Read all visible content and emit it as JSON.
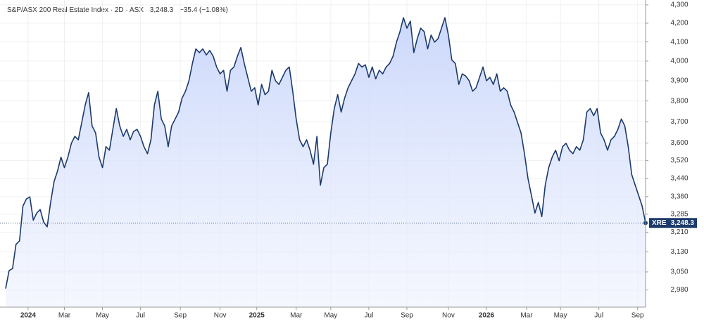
{
  "chart_data": {
    "type": "area",
    "title": "S&P/ASX 200 Real Estate Index · 2D · ASX",
    "last_price": "3,248.3",
    "change": "−35.4 (−1.08%)",
    "log_scale": true,
    "grid": true,
    "series": [
      {
        "name": "XRE",
        "color": "#1c3a6b",
        "values": [
          2985,
          3055,
          3063,
          3160,
          3174,
          3320,
          3350,
          3359,
          3260,
          3290,
          3305,
          3252,
          3232,
          3335,
          3426,
          3472,
          3535,
          3488,
          3535,
          3599,
          3631,
          3615,
          3696,
          3780,
          3841,
          3680,
          3647,
          3535,
          3488,
          3583,
          3567,
          3664,
          3763,
          3680,
          3631,
          3664,
          3615,
          3654,
          3664,
          3631,
          3583,
          3551,
          3615,
          3780,
          3848,
          3713,
          3680,
          3583,
          3680,
          3713,
          3746,
          3814,
          3848,
          3900,
          3988,
          4063,
          4044,
          4063,
          4032,
          4055,
          4025,
          3970,
          3935,
          3953,
          3848,
          3953,
          3970,
          4025,
          4070,
          3988,
          3917,
          3848,
          3865,
          3780,
          3882,
          3831,
          3848,
          3953,
          3900,
          3882,
          3917,
          3953,
          3970,
          3848,
          3713,
          3615,
          3583,
          3615,
          3567,
          3503,
          3631,
          3410,
          3488,
          3503,
          3647,
          3763,
          3831,
          3746,
          3814,
          3865,
          3900,
          3935,
          3988,
          3970,
          3981,
          3917,
          3970,
          3910,
          3953,
          3935,
          3970,
          3988,
          4025,
          4099,
          4154,
          4230,
          4173,
          4211,
          4044,
          4117,
          4173,
          4154,
          4063,
          4136,
          4099,
          4117,
          4173,
          4230,
          4136,
          4006,
          3988,
          3882,
          3935,
          3924,
          3900,
          3848,
          3865,
          3917,
          3970,
          3900,
          3917,
          3882,
          3935,
          3848,
          3865,
          3848,
          3780,
          3746,
          3696,
          3647,
          3551,
          3441,
          3365,
          3290,
          3335,
          3275,
          3410,
          3488,
          3535,
          3567,
          3519,
          3583,
          3599,
          3567,
          3551,
          3583,
          3567,
          3615,
          3746,
          3763,
          3729,
          3763,
          3647,
          3615,
          3567,
          3615,
          3631,
          3664,
          3713,
          3680,
          3583,
          3457,
          3410,
          3365,
          3320,
          3248.3
        ]
      }
    ],
    "xlim": [
      0,
      185
    ],
    "xticks": [
      {
        "value": 6.5,
        "label": "2024"
      },
      {
        "value": 17,
        "label": "Mar"
      },
      {
        "value": 28,
        "label": "May"
      },
      {
        "value": 39,
        "label": "Jul"
      },
      {
        "value": 50.5,
        "label": "Sep"
      },
      {
        "value": 62,
        "label": "Nov"
      },
      {
        "value": 72.6,
        "label": "2025"
      },
      {
        "value": 84,
        "label": "Mar"
      },
      {
        "value": 94,
        "label": "May"
      },
      {
        "value": 105,
        "label": "Jul"
      },
      {
        "value": 116,
        "label": "Sep"
      },
      {
        "value": 128,
        "label": "Nov"
      },
      {
        "value": 139,
        "label": "2026"
      },
      {
        "value": 150.6,
        "label": "Mar"
      },
      {
        "value": 160.4,
        "label": "May"
      },
      {
        "value": 171.5,
        "label": "Jul"
      },
      {
        "value": 182.7,
        "label": "Sep"
      }
    ],
    "ylim": [
      2915,
      4327
    ],
    "yticks": [
      {
        "value": 2980,
        "label": "2,980"
      },
      {
        "value": 3050,
        "label": "3,050"
      },
      {
        "value": 3130,
        "label": "3,130"
      },
      {
        "value": 3210,
        "label": "3,210"
      },
      {
        "value": 3285,
        "label": "3,285"
      },
      {
        "value": 3360,
        "label": "3,360"
      },
      {
        "value": 3440,
        "label": "3,440"
      },
      {
        "value": 3520,
        "label": "3,520"
      },
      {
        "value": 3600,
        "label": "3,600"
      },
      {
        "value": 3700,
        "label": "3,700"
      },
      {
        "value": 3800,
        "label": "3,800"
      },
      {
        "value": 3900,
        "label": "3,900"
      },
      {
        "value": 4000,
        "label": "4,000"
      },
      {
        "value": 4100,
        "label": "4,100"
      },
      {
        "value": 4200,
        "label": "4,200"
      },
      {
        "value": 4300,
        "label": "4,300"
      }
    ]
  }
}
